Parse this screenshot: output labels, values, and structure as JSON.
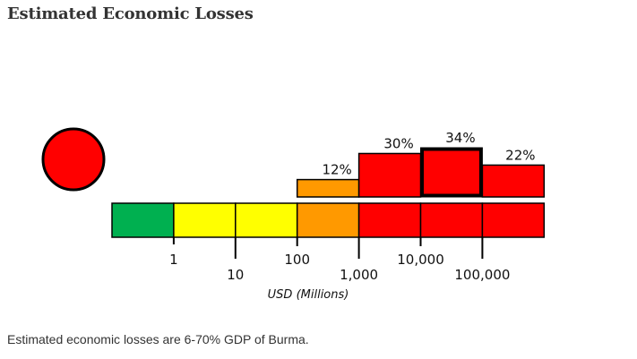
{
  "header": {
    "title": "Estimated Economic Losses"
  },
  "caption": "Estimated economic losses are 6-70% GDP of Burma.",
  "alert": {
    "level": "red",
    "color": "#ff0000"
  },
  "chart_data": {
    "type": "bar",
    "title": "Estimated Economic Losses",
    "xlabel": "USD (Millions)",
    "ylabel": "",
    "scale_type": "log",
    "segments": [
      {
        "range": "<1",
        "color": "#00b050"
      },
      {
        "range": "1-10",
        "color": "#ffff00"
      },
      {
        "range": "10-100",
        "color": "#ffff00"
      },
      {
        "range": "100-1,000",
        "color": "#ff9900"
      },
      {
        "range": "1,000-10,000",
        "color": "#ff0000"
      },
      {
        "range": "10,000-100,000",
        "color": "#ff0000"
      },
      {
        "range": ">100,000",
        "color": "#ff0000"
      }
    ],
    "tick_labels": [
      "1",
      "10",
      "100",
      "1,000",
      "10,000",
      "100,000"
    ],
    "categories": [
      "100-1,000",
      "1,000-10,000",
      "10,000-100,000",
      ">100,000"
    ],
    "values": [
      12,
      30,
      34,
      22
    ],
    "value_labels": [
      "12%",
      "30%",
      "34%",
      "22%"
    ],
    "bar_colors": [
      "#ff9900",
      "#ff0000",
      "#ff0000",
      "#ff0000"
    ],
    "bar_segment_index": [
      3,
      4,
      5,
      6
    ],
    "highlighted": "10,000-100,000",
    "ylim": [
      0,
      34
    ],
    "grid": false,
    "legend": "none"
  }
}
